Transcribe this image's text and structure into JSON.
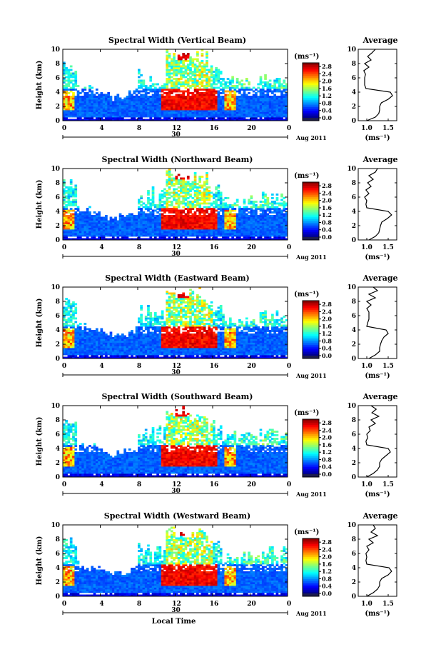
{
  "figure": {
    "x_axis_label": "Local Time",
    "date_label": "Aug 2011",
    "day_label": "30",
    "colorbar_unit": "(ms⁻¹)",
    "average_title": "Average",
    "average_unit": "(ms⁻¹)"
  },
  "colors": {
    "jet": [
      "#00007f",
      "#0000ff",
      "#007fff",
      "#00ffff",
      "#7fff7f",
      "#ffff00",
      "#ff7f00",
      "#ff0000",
      "#7f0000"
    ],
    "below_min": "#1c1c4f"
  },
  "chart_data": [
    {
      "type": "heatmap",
      "title": "Spectral Width (Vertical Beam)",
      "xlabel": "",
      "ylabel": "Height (km)",
      "xlim": [
        0,
        24
      ],
      "ylim": [
        0,
        10
      ],
      "xticks": [
        "0",
        "4",
        "8",
        "12",
        "16",
        "20",
        "0"
      ],
      "yticks": [
        "0",
        "2",
        "4",
        "6",
        "8",
        "10"
      ],
      "colorbar": {
        "ticks": [
          "0.0",
          "0.4",
          "0.8",
          "1.2",
          "1.6",
          "2.0",
          "2.4",
          "2.8"
        ],
        "range": [
          0,
          3
        ]
      },
      "average_profile": {
        "xlim": [
          0.8,
          1.7
        ],
        "xticks": [
          "1.0",
          "1.5"
        ],
        "yticks": [
          "0",
          "2",
          "4",
          "6",
          "8",
          "10"
        ],
        "height_km": [
          0,
          0.5,
          1,
          1.5,
          2,
          2.5,
          3,
          3.5,
          4,
          4.5,
          5,
          5.5,
          6,
          6.5,
          7,
          7.5,
          8,
          8.5,
          9,
          9.5,
          10
        ],
        "width": [
          1.0,
          1.2,
          1.28,
          1.3,
          1.3,
          1.34,
          1.5,
          1.6,
          1.55,
          0.98,
          0.95,
          0.95,
          0.95,
          0.97,
          0.93,
          1.05,
          0.95,
          1.1,
          1.02,
          1.12,
          1.2
        ]
      }
    },
    {
      "type": "heatmap",
      "title": "Spectral Width (Northward Beam)",
      "xlabel": "",
      "ylabel": "Height (km)",
      "xlim": [
        0,
        24
      ],
      "ylim": [
        0,
        10
      ],
      "xticks": [
        "0",
        "4",
        "8",
        "12",
        "16",
        "20",
        "0"
      ],
      "yticks": [
        "0",
        "2",
        "4",
        "6",
        "8",
        "10"
      ],
      "colorbar": {
        "ticks": [
          "0.0",
          "0.4",
          "0.8",
          "1.2",
          "1.6",
          "2.0",
          "2.4",
          "2.8"
        ],
        "range": [
          0,
          3
        ]
      },
      "average_profile": {
        "xlim": [
          0.8,
          1.7
        ],
        "xticks": [
          "1.0",
          "1.5"
        ],
        "yticks": [
          "0",
          "2",
          "4",
          "6",
          "8",
          "10"
        ],
        "height_km": [
          0,
          0.5,
          1,
          1.5,
          2,
          2.5,
          3,
          3.5,
          4,
          4.5,
          5,
          5.5,
          6,
          6.5,
          7,
          7.5,
          8,
          8.5,
          9,
          9.5,
          10
        ],
        "width": [
          1.05,
          1.2,
          1.28,
          1.3,
          1.32,
          1.35,
          1.48,
          1.58,
          1.5,
          1.0,
          0.98,
          1.0,
          0.95,
          1.05,
          0.98,
          1.1,
          1.02,
          1.15,
          1.05,
          1.2,
          1.25
        ]
      }
    },
    {
      "type": "heatmap",
      "title": "Spectral Width (Eastward Beam)",
      "xlabel": "",
      "ylabel": "Height (km)",
      "xlim": [
        0,
        24
      ],
      "ylim": [
        0,
        10
      ],
      "xticks": [
        "0",
        "4",
        "8",
        "12",
        "16",
        "20",
        "0"
      ],
      "yticks": [
        "0",
        "2",
        "4",
        "6",
        "8",
        "10"
      ],
      "colorbar": {
        "ticks": [
          "0.0",
          "0.4",
          "0.8",
          "1.2",
          "1.6",
          "2.0",
          "2.4",
          "2.8"
        ],
        "range": [
          0,
          3
        ]
      },
      "average_profile": {
        "xlim": [
          0.8,
          1.7
        ],
        "xticks": [
          "1.0",
          "1.5"
        ],
        "yticks": [
          "0",
          "2",
          "4",
          "6",
          "8",
          "10"
        ],
        "height_km": [
          0,
          0.5,
          1,
          1.5,
          2,
          2.5,
          3,
          3.5,
          4,
          4.5,
          5,
          5.5,
          6,
          6.5,
          7,
          7.5,
          8,
          8.5,
          9,
          9.5,
          10
        ],
        "width": [
          1.05,
          1.2,
          1.3,
          1.3,
          1.32,
          1.35,
          1.4,
          1.5,
          1.45,
          1.0,
          1.02,
          1.05,
          1.05,
          1.05,
          1.0,
          1.1,
          1.0,
          1.2,
          1.05,
          1.25,
          1.15
        ]
      }
    },
    {
      "type": "heatmap",
      "title": "Spectral Width (Southward Beam)",
      "xlabel": "",
      "ylabel": "Height (km)",
      "xlim": [
        0,
        24
      ],
      "ylim": [
        0,
        10
      ],
      "xticks": [
        "0",
        "4",
        "8",
        "12",
        "16",
        "20",
        "0"
      ],
      "yticks": [
        "0",
        "2",
        "4",
        "6",
        "8",
        "10"
      ],
      "colorbar": {
        "ticks": [
          "0.0",
          "0.4",
          "0.8",
          "1.2",
          "1.6",
          "2.0",
          "2.4",
          "2.8"
        ],
        "range": [
          0,
          3
        ]
      },
      "average_profile": {
        "xlim": [
          0.8,
          1.7
        ],
        "xticks": [
          "1.0",
          "1.5"
        ],
        "yticks": [
          "0",
          "2",
          "4",
          "6",
          "8",
          "10"
        ],
        "height_km": [
          0,
          0.5,
          1,
          1.5,
          2,
          2.5,
          3,
          3.5,
          4,
          4.5,
          5,
          5.5,
          6,
          6.5,
          7,
          7.5,
          8,
          8.5,
          9,
          9.5,
          10
        ],
        "width": [
          1.0,
          1.15,
          1.25,
          1.3,
          1.3,
          1.35,
          1.45,
          1.55,
          1.5,
          1.0,
          0.98,
          1.02,
          1.0,
          1.08,
          1.05,
          1.2,
          1.1,
          1.28,
          1.12,
          1.22,
          1.1
        ]
      }
    },
    {
      "type": "heatmap",
      "title": "Spectral Width (Westward Beam)",
      "xlabel": "Local Time",
      "ylabel": "Height (km)",
      "xlim": [
        0,
        24
      ],
      "ylim": [
        0,
        10
      ],
      "xticks": [
        "0",
        "4",
        "8",
        "12",
        "16",
        "20",
        "0"
      ],
      "yticks": [
        "0",
        "2",
        "4",
        "6",
        "8",
        "10"
      ],
      "colorbar": {
        "ticks": [
          "0.0",
          "0.4",
          "0.8",
          "1.2",
          "1.6",
          "2.0",
          "2.4",
          "2.8"
        ],
        "range": [
          0,
          3
        ]
      },
      "average_profile": {
        "xlim": [
          0.8,
          1.7
        ],
        "xticks": [
          "1.0",
          "1.5"
        ],
        "yticks": [
          "0",
          "2",
          "4",
          "6",
          "8",
          "10"
        ],
        "height_km": [
          0,
          0.5,
          1,
          1.5,
          2,
          2.5,
          3,
          3.5,
          4,
          4.5,
          5,
          5.5,
          6,
          6.5,
          7,
          7.5,
          8,
          8.5,
          9,
          9.5,
          10
        ],
        "width": [
          1.0,
          1.15,
          1.25,
          1.3,
          1.3,
          1.35,
          1.5,
          1.58,
          1.52,
          1.0,
          0.98,
          1.0,
          0.98,
          1.05,
          1.0,
          1.15,
          1.05,
          1.25,
          1.1,
          1.2,
          1.15
        ]
      }
    }
  ]
}
